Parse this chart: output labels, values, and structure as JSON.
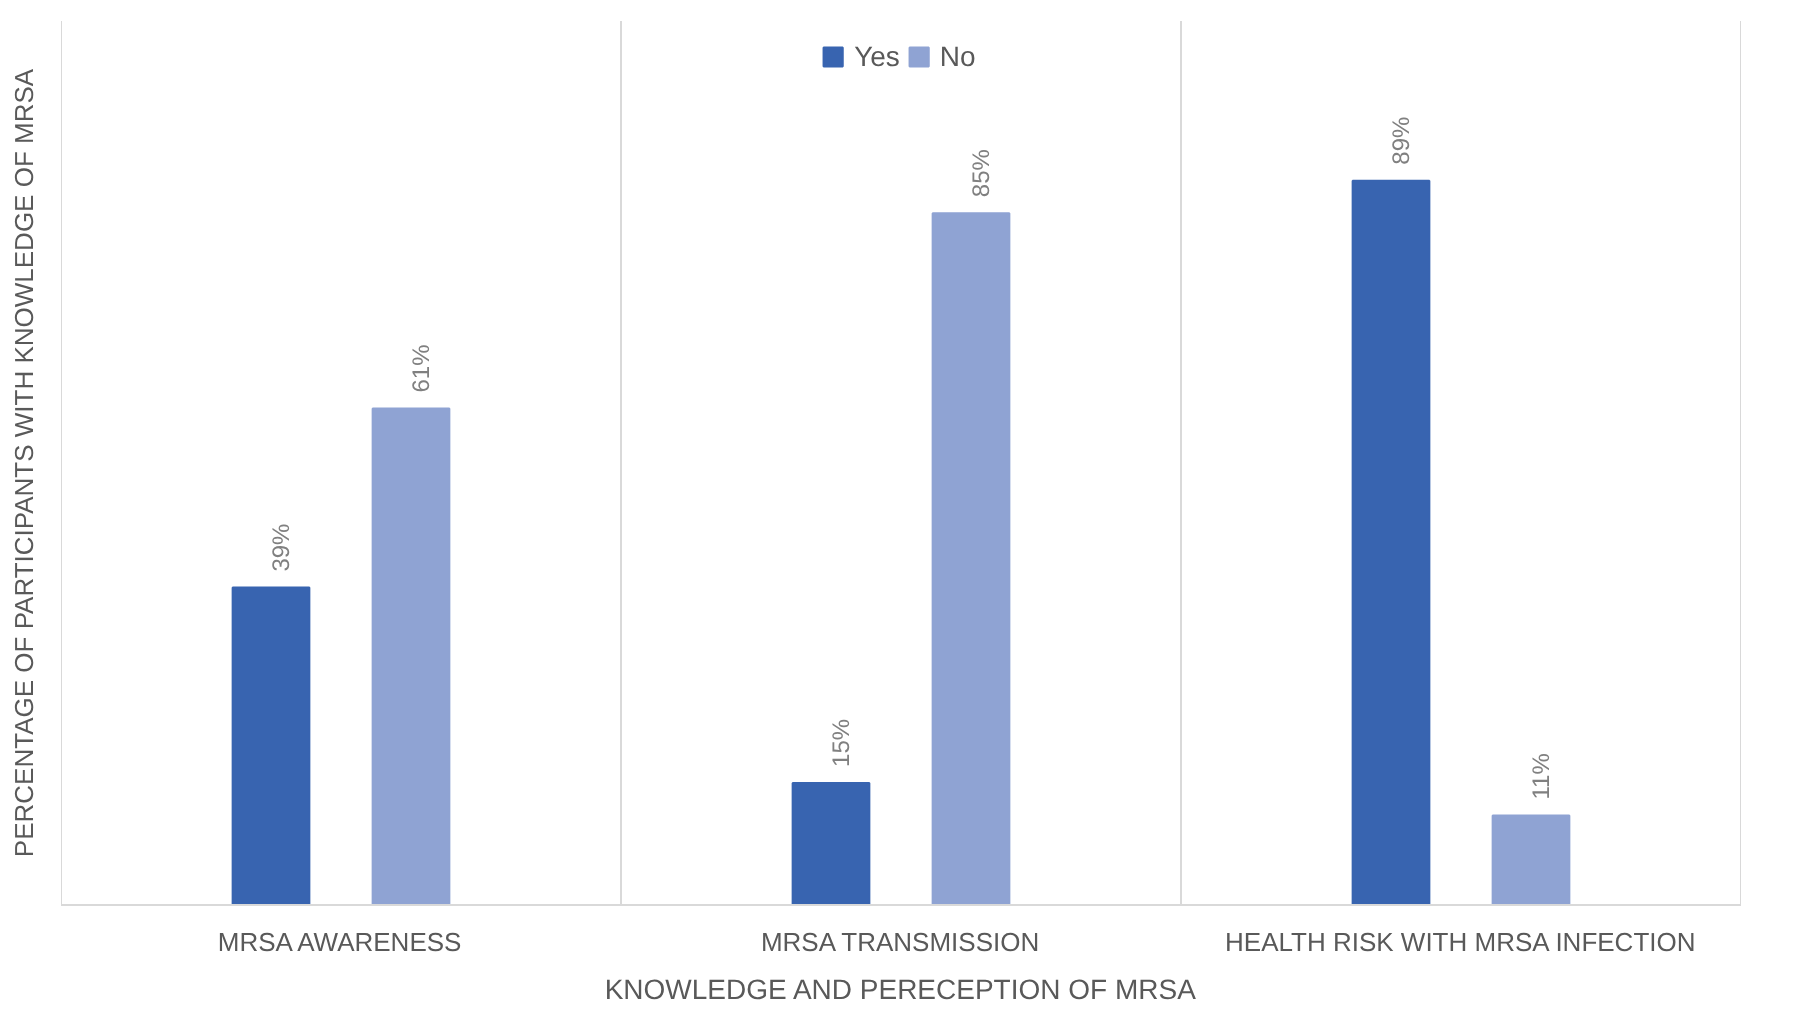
{
  "chart_data": {
    "type": "bar",
    "xlabel": "KNOWLEDGE AND PERECEPTION OF MRSA",
    "ylabel": "PERCENTAGE OF PARTICIPANTS WITH KNOWLEDGE OF MRSA",
    "categories": [
      "MRSA AWARENESS",
      "MRSA TRANSMISSION",
      "HEALTH RISK WITH MRSA INFECTION"
    ],
    "series": [
      {
        "name": "Yes",
        "color": "#3864b0",
        "values": [
          39,
          15,
          89
        ],
        "value_labels": [
          "39%",
          "15%",
          "89%"
        ]
      },
      {
        "name": "No",
        "color": "#8fa3d3",
        "values": [
          61,
          85,
          11
        ],
        "value_labels": [
          "61%",
          "85%",
          "11%"
        ]
      }
    ],
    "grid": "x",
    "legend": "top"
  }
}
